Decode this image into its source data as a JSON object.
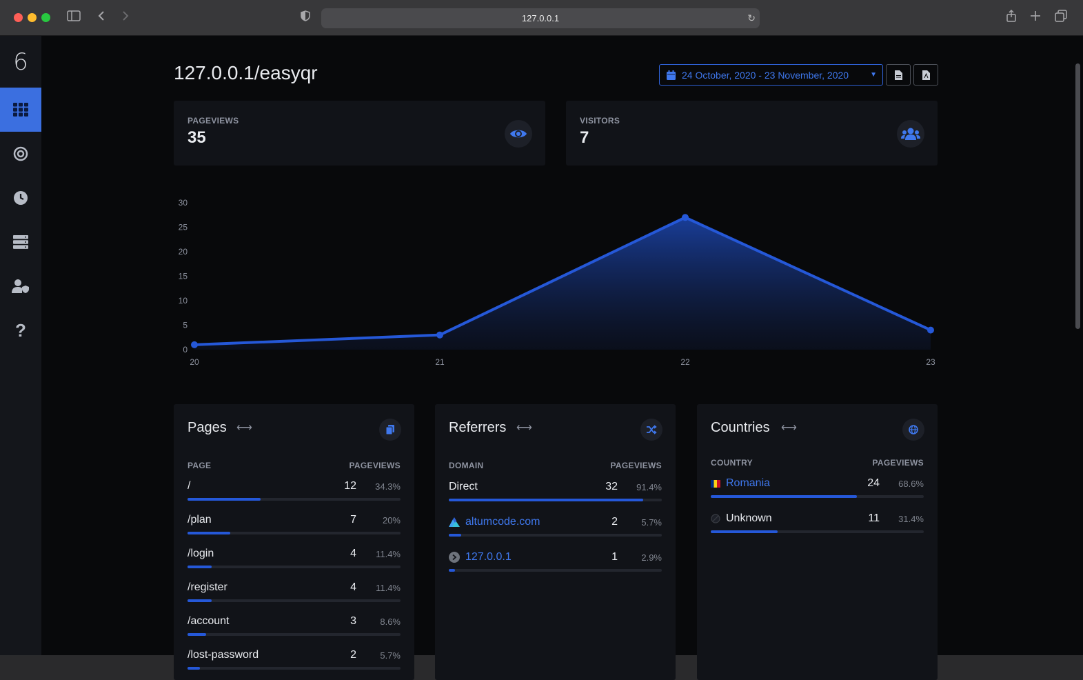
{
  "browser": {
    "url": "127.0.0.1"
  },
  "sidebar": {
    "logo": "6"
  },
  "header": {
    "title": "127.0.0.1/easyqr",
    "date_range": "24 October, 2020 - 23 November, 2020"
  },
  "stats": [
    {
      "label": "PAGEVIEWS",
      "value": "35",
      "icon": "eye-icon"
    },
    {
      "label": "VISITORS",
      "value": "7",
      "icon": "users-icon"
    }
  ],
  "chart_data": {
    "type": "area",
    "x": [
      "20",
      "21",
      "22",
      "23"
    ],
    "series": [
      {
        "values": [
          1,
          3,
          27,
          4
        ]
      }
    ],
    "ylim": [
      0,
      30
    ],
    "yticks": [
      "0",
      "5",
      "10",
      "15",
      "20",
      "25",
      "30"
    ],
    "color": "#2558d8",
    "grid": false
  },
  "pages": {
    "title": "Pages",
    "col_page": "PAGE",
    "col_pageviews": "PAGEVIEWS",
    "rows": [
      {
        "label": "/",
        "count": "12",
        "pct": "34.3%",
        "fraction": 0.343
      },
      {
        "label": "/plan",
        "count": "7",
        "pct": "20%",
        "fraction": 0.2
      },
      {
        "label": "/login",
        "count": "4",
        "pct": "11.4%",
        "fraction": 0.114
      },
      {
        "label": "/register",
        "count": "4",
        "pct": "11.4%",
        "fraction": 0.114
      },
      {
        "label": "/account",
        "count": "3",
        "pct": "8.6%",
        "fraction": 0.086
      },
      {
        "label": "/lost-password",
        "count": "2",
        "pct": "5.7%",
        "fraction": 0.057
      }
    ]
  },
  "referrers": {
    "title": "Referrers",
    "col_domain": "DOMAIN",
    "col_pageviews": "PAGEVIEWS",
    "rows": [
      {
        "label": "Direct",
        "count": "32",
        "pct": "91.4%",
        "fraction": 0.914
      },
      {
        "label": "altumcode.com",
        "count": "2",
        "pct": "5.7%",
        "fraction": 0.057
      },
      {
        "label": "127.0.0.1",
        "count": "1",
        "pct": "2.9%",
        "fraction": 0.029
      }
    ]
  },
  "countries": {
    "title": "Countries",
    "col_country": "COUNTRY",
    "col_pageviews": "PAGEVIEWS",
    "rows": [
      {
        "label": "Romania",
        "count": "24",
        "pct": "68.6%",
        "fraction": 0.686
      },
      {
        "label": "Unknown",
        "count": "11",
        "pct": "31.4%",
        "fraction": 0.314
      }
    ]
  }
}
